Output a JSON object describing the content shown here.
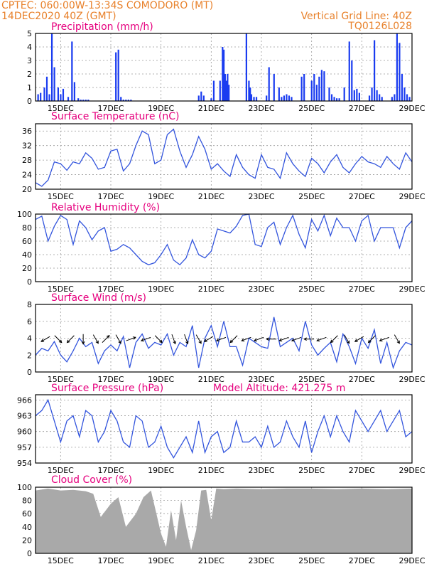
{
  "header": {
    "line1": "CPTEC:  060:00W-13:34S  COMODORO (MT)",
    "line2": "14DEC2020 40Z (GMT)",
    "grid_note": "Vertical Grid Line: 40Z",
    "code": "TQ0126L028"
  },
  "x_axis": {
    "labels": [
      "15DEC",
      "17DEC",
      "19DEC",
      "21DEC",
      "23DEC",
      "25DEC",
      "27DEC",
      "29DEC"
    ],
    "label_days": [
      1,
      3,
      5,
      7,
      9,
      11,
      13,
      15
    ],
    "range_days": [
      0,
      15
    ]
  },
  "chart_data": [
    {
      "type": "bar",
      "title": "Precipitation (mm/h)",
      "ylim": [
        0,
        5
      ],
      "yticks": [
        0,
        1,
        2,
        3,
        4,
        5
      ],
      "x_days": [
        0.1,
        0.2,
        0.35,
        0.45,
        0.55,
        0.65,
        0.75,
        0.9,
        1.0,
        1.1,
        1.3,
        1.45,
        1.55,
        1.7,
        1.8,
        1.9,
        2.0,
        2.1,
        3.2,
        3.3,
        3.4,
        3.5,
        3.6,
        3.7,
        3.8,
        6.5,
        6.6,
        6.7,
        7.0,
        7.1,
        7.35,
        7.45,
        7.5,
        7.55,
        7.6,
        7.65,
        7.7,
        8.4,
        8.5,
        8.55,
        8.6,
        8.7,
        8.8,
        9.2,
        9.3,
        9.5,
        9.7,
        9.8,
        9.9,
        10.0,
        10.1,
        10.2,
        10.6,
        10.7,
        11.0,
        11.1,
        11.2,
        11.3,
        11.4,
        11.5,
        11.7,
        11.8,
        11.9,
        12.0,
        12.1,
        12.3,
        12.5,
        12.6,
        12.7,
        12.8,
        12.9,
        13.3,
        13.4,
        13.5,
        13.6,
        13.7,
        13.8,
        14.2,
        14.3,
        14.4,
        14.5,
        14.6,
        14.7,
        14.8,
        14.9
      ],
      "values": [
        0.5,
        0.6,
        1.0,
        1.8,
        0.5,
        5.0,
        2.5,
        1.0,
        0.5,
        0.9,
        0.3,
        4.4,
        1.4,
        0.2,
        0.1,
        0.1,
        0.1,
        0.1,
        3.6,
        3.8,
        0.3,
        0.1,
        0.1,
        0.1,
        0.1,
        0.4,
        0.7,
        0.4,
        0.2,
        1.5,
        1.5,
        4.0,
        3.8,
        2.0,
        1.5,
        2.0,
        1.2,
        5.0,
        1.5,
        1.0,
        0.5,
        0.3,
        0.3,
        0.4,
        2.5,
        2.0,
        1.0,
        0.3,
        0.4,
        0.5,
        0.4,
        0.3,
        1.8,
        2.0,
        1.5,
        2.0,
        1.2,
        1.8,
        2.3,
        2.2,
        1.0,
        0.5,
        0.3,
        0.2,
        0.2,
        1.0,
        4.4,
        3.0,
        0.8,
        0.9,
        0.6,
        0.4,
        1.0,
        4.5,
        0.8,
        0.5,
        0.3,
        0.3,
        0.5,
        5.0,
        4.3,
        2.0,
        1.0,
        0.5,
        0.3
      ]
    },
    {
      "type": "line",
      "title": "Surface Temperature (nC)",
      "ylim": [
        20,
        38
      ],
      "yticks": [
        20,
        24,
        28,
        32,
        36
      ],
      "x": [
        0,
        0.25,
        0.5,
        0.75,
        1.0,
        1.25,
        1.5,
        1.75,
        2.0,
        2.25,
        2.5,
        2.75,
        3.0,
        3.25,
        3.5,
        3.75,
        4.0,
        4.25,
        4.5,
        4.75,
        5.0,
        5.25,
        5.5,
        5.75,
        6.0,
        6.25,
        6.5,
        6.75,
        7.0,
        7.25,
        7.5,
        7.75,
        8.0,
        8.25,
        8.5,
        8.75,
        9.0,
        9.25,
        9.5,
        9.75,
        10.0,
        10.25,
        10.5,
        10.75,
        11.0,
        11.25,
        11.5,
        11.75,
        12.0,
        12.25,
        12.5,
        12.75,
        13.0,
        13.25,
        13.5,
        13.75,
        14.0,
        14.25,
        14.5,
        14.75,
        15.0
      ],
      "values": [
        21.8,
        20.8,
        22.5,
        27.5,
        27.0,
        25.2,
        27.5,
        27.0,
        30.0,
        28.5,
        25.5,
        26.0,
        30.5,
        31.0,
        25.0,
        27.0,
        32.0,
        36.0,
        35.0,
        27.0,
        28.0,
        35.0,
        36.5,
        30.5,
        26.0,
        29.5,
        34.5,
        31.0,
        25.5,
        27.0,
        25.0,
        23.5,
        29.5,
        26.0,
        24.0,
        23.0,
        29.5,
        26.0,
        25.5,
        23.0,
        30.0,
        27.0,
        25.0,
        23.5,
        28.5,
        27.0,
        24.5,
        27.5,
        29.5,
        26.0,
        24.5,
        27.0,
        29.0,
        27.5,
        27.0,
        26.0,
        29.0,
        27.0,
        25.5,
        30.0,
        27.5
      ]
    },
    {
      "type": "line",
      "title": "Relative Humidity (%)",
      "ylim": [
        0,
        100
      ],
      "yticks": [
        0,
        20,
        40,
        60,
        80,
        100
      ],
      "x": [
        0,
        0.25,
        0.5,
        0.75,
        1.0,
        1.25,
        1.5,
        1.75,
        2.0,
        2.25,
        2.5,
        2.75,
        3.0,
        3.25,
        3.5,
        3.75,
        4.0,
        4.25,
        4.5,
        4.75,
        5.0,
        5.25,
        5.5,
        5.75,
        6.0,
        6.25,
        6.5,
        6.75,
        7.0,
        7.25,
        7.5,
        7.75,
        8.0,
        8.25,
        8.5,
        8.75,
        9.0,
        9.25,
        9.5,
        9.75,
        10.0,
        10.25,
        10.5,
        10.75,
        11.0,
        11.25,
        11.5,
        11.75,
        12.0,
        12.25,
        12.5,
        12.75,
        13.0,
        13.25,
        13.5,
        13.75,
        14.0,
        14.25,
        14.5,
        14.75,
        15.0
      ],
      "values": [
        92,
        97,
        60,
        82,
        98,
        92,
        55,
        90,
        80,
        62,
        75,
        80,
        45,
        48,
        55,
        50,
        40,
        30,
        25,
        28,
        40,
        55,
        32,
        25,
        35,
        62,
        40,
        35,
        45,
        78,
        75,
        72,
        82,
        98,
        100,
        55,
        52,
        80,
        88,
        55,
        80,
        98,
        70,
        50,
        92,
        75,
        98,
        68,
        94,
        80,
        80,
        60,
        90,
        98,
        60,
        80,
        80,
        80,
        50,
        80,
        90
      ]
    },
    {
      "type": "line",
      "title": "Surface Wind (m/s)",
      "ylim": [
        0,
        8
      ],
      "yticks": [
        0,
        2,
        4,
        6,
        8
      ],
      "x": [
        0,
        0.25,
        0.5,
        0.75,
        1.0,
        1.25,
        1.5,
        1.75,
        2.0,
        2.25,
        2.5,
        2.75,
        3.0,
        3.25,
        3.5,
        3.75,
        4.0,
        4.25,
        4.5,
        4.75,
        5.0,
        5.25,
        5.5,
        5.75,
        6.0,
        6.25,
        6.5,
        6.75,
        7.0,
        7.25,
        7.5,
        7.75,
        8.0,
        8.25,
        8.5,
        8.75,
        9.0,
        9.25,
        9.5,
        9.75,
        10.0,
        10.25,
        10.5,
        10.75,
        11.0,
        11.25,
        11.5,
        11.75,
        12.0,
        12.25,
        12.5,
        12.75,
        13.0,
        13.25,
        13.5,
        13.75,
        14.0,
        14.25,
        14.5,
        14.75,
        15.0
      ],
      "values": [
        2.0,
        2.8,
        2.5,
        3.6,
        2.0,
        1.2,
        2.5,
        4.0,
        3.0,
        3.5,
        1.0,
        2.5,
        3.2,
        2.5,
        4.2,
        0.5,
        3.5,
        4.5,
        2.8,
        3.5,
        3.2,
        4.5,
        2.0,
        3.5,
        3.0,
        5.5,
        0.5,
        4.0,
        5.5,
        3.0,
        6.0,
        3.0,
        3.0,
        0.8,
        4.0,
        3.5,
        3.0,
        2.8,
        6.5,
        3.0,
        3.5,
        4.0,
        2.5,
        6.0,
        3.2,
        2.0,
        2.8,
        3.5,
        1.2,
        4.5,
        3.0,
        1.0,
        4.0,
        2.8,
        5.0,
        1.0,
        3.5,
        0.5,
        2.5,
        3.5,
        3.2
      ],
      "vectors_x": [
        0.4,
        0.9,
        1.4,
        1.9,
        2.4,
        2.8,
        3.3,
        3.8,
        4.4,
        4.9,
        5.5,
        6.0,
        6.5,
        6.9,
        7.4,
        7.9,
        8.4,
        8.9,
        9.4,
        9.9,
        10.4,
        10.9,
        11.4,
        11.9,
        12.4,
        12.9,
        13.4,
        13.9,
        14.4
      ],
      "vectors_dir": [
        210,
        315,
        225,
        270,
        300,
        45,
        300,
        20,
        200,
        315,
        290,
        290,
        300,
        210,
        200,
        225,
        200,
        200,
        180,
        200,
        200,
        180,
        200,
        225,
        300,
        210,
        225,
        200,
        300
      ]
    },
    {
      "type": "line",
      "title": "Surface Pressure (hPa)",
      "subtitle": "Model Altitude: 421.275 m",
      "ylim": [
        954,
        967
      ],
      "yticks": [
        954,
        957,
        960,
        963,
        966
      ],
      "x": [
        0,
        0.25,
        0.5,
        0.75,
        1.0,
        1.25,
        1.5,
        1.75,
        2.0,
        2.25,
        2.5,
        2.75,
        3.0,
        3.25,
        3.5,
        3.75,
        4.0,
        4.25,
        4.5,
        4.75,
        5.0,
        5.25,
        5.5,
        5.75,
        6.0,
        6.25,
        6.5,
        6.75,
        7.0,
        7.25,
        7.5,
        7.75,
        8.0,
        8.25,
        8.5,
        8.75,
        9.0,
        9.25,
        9.5,
        9.75,
        10.0,
        10.25,
        10.5,
        10.75,
        11.0,
        11.25,
        11.5,
        11.75,
        12.0,
        12.25,
        12.5,
        12.75,
        13.0,
        13.25,
        13.5,
        13.75,
        14.0,
        14.25,
        14.5,
        14.75,
        15.0
      ],
      "values": [
        963,
        964,
        966,
        962,
        958,
        962,
        963,
        959,
        964,
        963,
        958,
        960,
        964,
        962,
        958,
        957,
        963,
        962,
        957,
        958,
        961,
        957,
        955,
        957,
        959,
        956,
        962,
        956,
        959,
        960,
        956,
        957,
        962,
        958,
        958,
        959,
        957,
        961,
        957,
        958,
        962,
        959,
        957,
        962,
        956,
        960,
        963,
        959,
        963,
        960,
        958,
        964,
        962,
        960,
        962,
        964,
        960,
        962,
        964,
        959,
        960
      ]
    },
    {
      "type": "area",
      "title": "Cloud Cover (%)",
      "ylim": [
        0,
        100
      ],
      "yticks": [
        0,
        20,
        40,
        60,
        80,
        100
      ],
      "x": [
        0,
        0.5,
        1.0,
        1.5,
        2.0,
        2.3,
        2.6,
        3.0,
        3.3,
        3.6,
        4.0,
        4.3,
        4.6,
        5.0,
        5.2,
        5.4,
        5.6,
        5.8,
        6.0,
        6.2,
        6.4,
        6.6,
        6.8,
        7.0,
        7.2,
        7.5,
        8.0,
        9.0,
        10.0,
        11.0,
        12.0,
        13.0,
        14.0,
        15.0
      ],
      "values": [
        95,
        98,
        95,
        96,
        94,
        90,
        55,
        75,
        85,
        40,
        60,
        85,
        95,
        30,
        10,
        65,
        20,
        80,
        40,
        5,
        35,
        95,
        96,
        50,
        98,
        97,
        98,
        97,
        98,
        98,
        97,
        98,
        97,
        98
      ]
    }
  ]
}
